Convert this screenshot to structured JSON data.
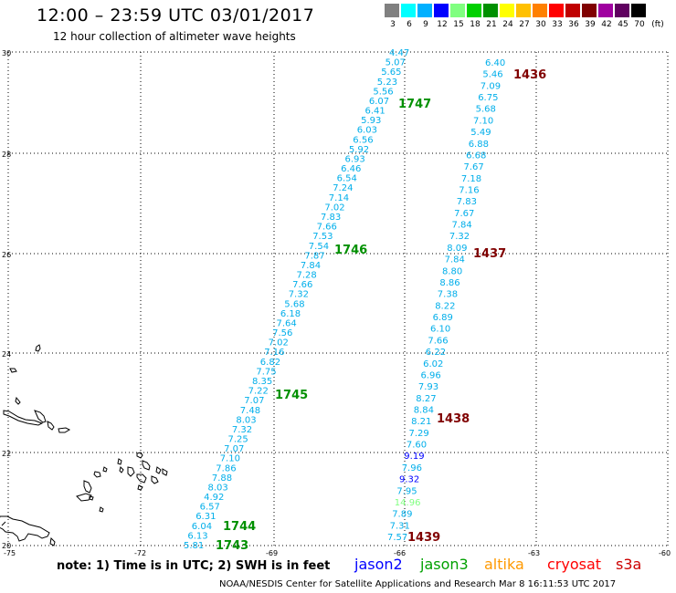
{
  "header": {
    "title": "12:00 – 23:59 UTC 03/01/2017",
    "subtitle": "12 hour collection of altimeter wave heights"
  },
  "legend": {
    "unit": "(ft)",
    "bins": [
      {
        "label": "3",
        "color": "#808080"
      },
      {
        "label": "6",
        "color": "#00ffff"
      },
      {
        "label": "9",
        "color": "#00b0ff"
      },
      {
        "label": "12",
        "color": "#0000ff"
      },
      {
        "label": "15",
        "color": "#80ff80"
      },
      {
        "label": "18",
        "color": "#00d000"
      },
      {
        "label": "21",
        "color": "#009000"
      },
      {
        "label": "24",
        "color": "#ffff00"
      },
      {
        "label": "27",
        "color": "#ffc000"
      },
      {
        "label": "30",
        "color": "#ff8000"
      },
      {
        "label": "33",
        "color": "#ff0000"
      },
      {
        "label": "36",
        "color": "#c00000"
      },
      {
        "label": "39",
        "color": "#800000"
      },
      {
        "label": "42",
        "color": "#a000a0"
      },
      {
        "label": "45",
        "color": "#600060"
      },
      {
        "label": "70",
        "color": "#000000"
      }
    ]
  },
  "axes": {
    "lat_labels": [
      "30",
      "28",
      "26",
      "24",
      "22",
      "20"
    ],
    "lon_labels": [
      "-75",
      "-72",
      "-69",
      "-66",
      "-63",
      "-60"
    ]
  },
  "tracks": {
    "jason3_west": {
      "color": "#00aeea",
      "values": [
        "4.47",
        "5.07",
        "5.65",
        "5.23",
        "5.56",
        "6.07",
        "6.41",
        "5.93",
        "6.03",
        "6.56",
        "5.92",
        "6.93",
        "6.46",
        "6.54",
        "7.24",
        "7.14",
        "7.02",
        "7.83",
        "7.66",
        "7.53",
        "7.54",
        "7.87",
        "7.84",
        "7.28",
        "7.66",
        "7.32",
        "5.68",
        "6.18",
        "7.64",
        "7.56",
        "7.02",
        "7.16",
        "6.82",
        "7.75",
        "8.35",
        "7.22",
        "7.07",
        "7.48",
        "8.03",
        "7.32",
        "7.25",
        "7.07",
        "7.10",
        "7.86",
        "7.88",
        "8.03",
        "4.92",
        "6.57",
        "6.31",
        "6.04",
        "6.13",
        "5.81"
      ]
    },
    "jason3_east": {
      "color": "#00aeea",
      "values": [
        "6.40",
        "5.46",
        "7.09",
        "6.75",
        "5.68",
        "7.10",
        "5.49",
        "6.88",
        "6.68",
        "7.67",
        "7.18",
        "7.16",
        "7.83",
        "7.67",
        "7.84",
        "7.32",
        "8.09",
        "7.84",
        "8.80",
        "8.86",
        "7.38",
        "8.22",
        "6.89",
        "6.10",
        "7.66",
        "6.22",
        "6.02",
        "6.96",
        "7.93",
        "8.27",
        "8.84",
        "8.21",
        "7.29",
        "7.60",
        "9.19",
        "7.96",
        "9.32",
        "7.95",
        "14.96",
        "7.89",
        "7.31",
        "7.57"
      ],
      "value_colors": {
        "34": "#0000ff",
        "36": "#0000ff",
        "38": "#80ff80"
      }
    }
  },
  "time_labels": [
    {
      "text": "1436",
      "color": "#800000"
    },
    {
      "text": "1747",
      "color": "#009000"
    },
    {
      "text": "1746",
      "color": "#009000"
    },
    {
      "text": "1437",
      "color": "#800000"
    },
    {
      "text": "1745",
      "color": "#009000"
    },
    {
      "text": "1438",
      "color": "#800000"
    },
    {
      "text": "1744",
      "color": "#009000"
    },
    {
      "text": "1439",
      "color": "#800000"
    },
    {
      "text": "1743",
      "color": "#009000"
    }
  ],
  "footer": {
    "note": "note:  1) Time is in UTC;  2) SWH is in feet",
    "satellites": [
      {
        "name": "jason2",
        "color": "#0000ff"
      },
      {
        "name": "jason3",
        "color": "#00a000"
      },
      {
        "name": "altika",
        "color": "#ff9900"
      },
      {
        "name": "cryosat",
        "color": "#ff0000"
      },
      {
        "name": "s3a",
        "color": "#cc0000"
      }
    ],
    "credit": "NOAA/NESDIS Center for Satellite Applications and Research     Mar  8 16:11:53 UTC 2017"
  }
}
